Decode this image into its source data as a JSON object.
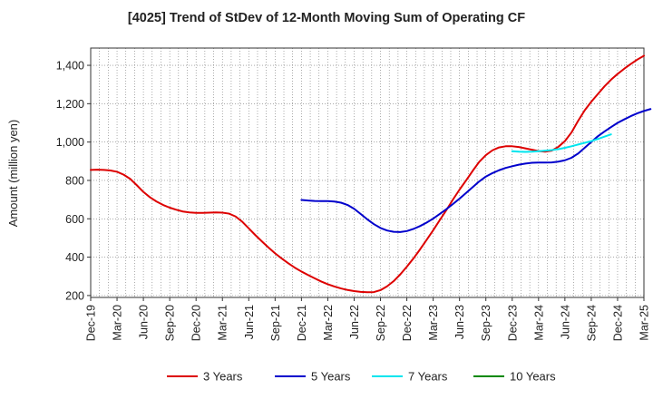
{
  "chart_data": {
    "type": "line",
    "title": "[4025]  Trend of StDev of 12-Month Moving Sum of Operating CF",
    "xlabel": "",
    "ylabel": "Amount (million yen)",
    "ylim": [
      190,
      1490
    ],
    "yticks": [
      200,
      400,
      600,
      800,
      1000,
      1200,
      1400
    ],
    "ytick_labels": [
      "200",
      "400",
      "600",
      "800",
      "1,000",
      "1,200",
      "1,400"
    ],
    "x_tick_labels": [
      "Dec-19",
      "Mar-20",
      "Jun-20",
      "Sep-20",
      "Dec-20",
      "Mar-21",
      "Jun-21",
      "Sep-21",
      "Dec-21",
      "Mar-22",
      "Jun-22",
      "Sep-22",
      "Dec-22",
      "Mar-23",
      "Jun-23",
      "Sep-23",
      "Dec-23",
      "Mar-24",
      "Jun-24",
      "Sep-24",
      "Dec-24",
      "Mar-25"
    ],
    "x_months_total": 63,
    "grid": true,
    "legend_position": "bottom",
    "series": [
      {
        "name": "3 Years",
        "color": "#dd0000",
        "start_month": 0,
        "values": [
          855,
          856,
          855,
          852,
          845,
          830,
          808,
          775,
          740,
          712,
          690,
          672,
          658,
          647,
          638,
          633,
          631,
          631,
          632,
          633,
          632,
          627,
          612,
          585,
          550,
          515,
          482,
          450,
          420,
          393,
          368,
          345,
          325,
          307,
          290,
          273,
          259,
          247,
          237,
          229,
          223,
          219,
          217,
          218,
          228,
          248,
          275,
          310,
          350,
          393,
          440,
          490,
          540,
          593,
          645,
          700,
          752,
          800,
          850,
          897,
          932,
          957,
          972,
          978,
          978,
          974,
          967,
          960,
          953,
          950,
          955,
          975,
          1005,
          1050,
          1110,
          1165,
          1210,
          1250,
          1290,
          1325,
          1355,
          1382,
          1407,
          1430,
          1450
        ]
      },
      {
        "name": "5 Years",
        "color": "#0000cc",
        "start_month": 24,
        "values": [
          698,
          695,
          693,
          692,
          692,
          690,
          684,
          672,
          652,
          625,
          597,
          572,
          552,
          539,
          532,
          531,
          536,
          547,
          562,
          580,
          601,
          625,
          650,
          677,
          705,
          735,
          765,
          795,
          820,
          838,
          853,
          865,
          874,
          882,
          888,
          892,
          893,
          893,
          894,
          898,
          905,
          918,
          940,
          970,
          1000,
          1030,
          1055,
          1078,
          1100,
          1118,
          1135,
          1150,
          1162,
          1172
        ]
      },
      {
        "name": "7 Years",
        "color": "#00e5ee",
        "start_month": 48,
        "values": [
          952,
          950,
          949,
          950,
          952,
          955,
          958,
          963,
          970,
          978,
          987,
          996,
          1005,
          1016,
          1028,
          1040
        ]
      },
      {
        "name": "10 Years",
        "color": "#008800",
        "start_month": 0,
        "values": []
      }
    ]
  }
}
